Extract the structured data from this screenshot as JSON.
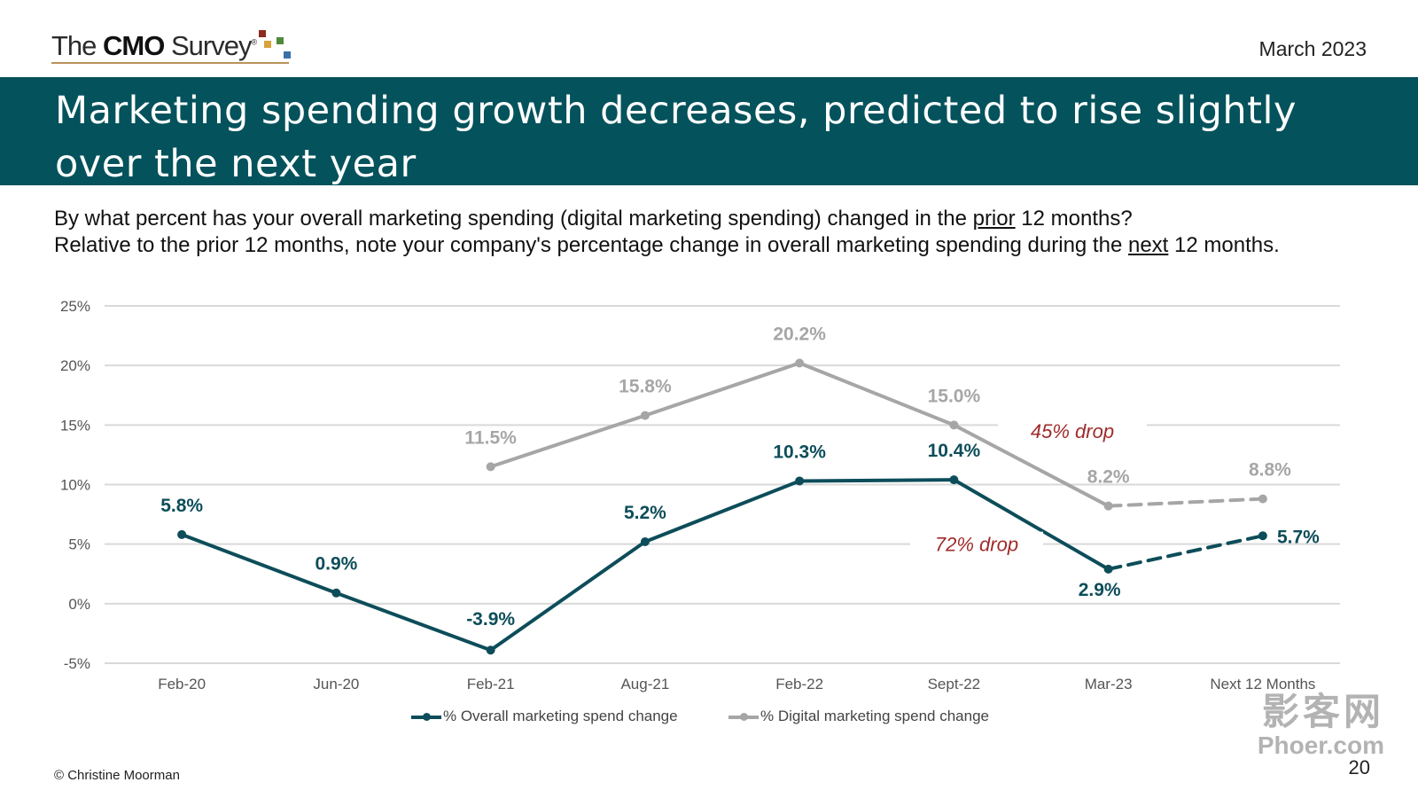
{
  "header": {
    "logo_prefix": "The ",
    "logo_bold": "CMO",
    "logo_suffix": " Survey",
    "logo_reg": "®",
    "date": "March 2023",
    "logo_colors": [
      "#8b2a1e",
      "#d9a23a",
      "#4e8a3a",
      "#3a6fa8"
    ]
  },
  "title": "Marketing spending growth decreases, predicted to rise slightly over the next year",
  "question": {
    "line1_before": "By what percent has your overall marketing spending (digital marketing spending) changed in the ",
    "line1_underlined": "prior",
    "line1_after": " 12 months?",
    "line2_before": "Relative to the prior 12 months, note your company's percentage change in overall marketing spending during the ",
    "line2_underlined": "next",
    "line2_after": " 12 months."
  },
  "chart_data": {
    "type": "line",
    "categories": [
      "Feb-20",
      "Jun-20",
      "Feb-21",
      "Aug-21",
      "Feb-22",
      "Sept-22",
      "Mar-23",
      "Next 12 Months"
    ],
    "ylim": [
      -5,
      25
    ],
    "yticks": [
      -5,
      0,
      5,
      10,
      15,
      20,
      25
    ],
    "ytick_labels": [
      "-5%",
      "0%",
      "5%",
      "10%",
      "15%",
      "20%",
      "25%"
    ],
    "grid": true,
    "legend_position": "bottom",
    "series": [
      {
        "name": "% Overall marketing spend change",
        "color": "#0d4d5a",
        "values": [
          5.8,
          0.9,
          -3.9,
          5.2,
          10.3,
          10.4,
          2.9,
          5.7
        ],
        "labels": [
          "5.8%",
          "0.9%",
          "-3.9%",
          "5.2%",
          "10.3%",
          "10.4%",
          "2.9%",
          "5.7%"
        ],
        "dashed_last_segment": true
      },
      {
        "name": "% Digital marketing spend change",
        "color": "#a6a6a6",
        "values": [
          null,
          null,
          11.5,
          15.8,
          20.2,
          15.0,
          8.2,
          8.8
        ],
        "labels": [
          null,
          null,
          "11.5%",
          "15.8%",
          "20.2%",
          "15.0%",
          "8.2%",
          "8.8%"
        ],
        "dashed_last_segment": true
      }
    ],
    "annotations": [
      {
        "text": "45% drop",
        "near": "Sept-22 to Mar-23, digital series",
        "value": 14.5
      },
      {
        "text": "72% drop",
        "near": "Sept-22 to Mar-23, overall series",
        "value": 5.0
      }
    ]
  },
  "footer": {
    "copyright": "© Christine Moorman",
    "page_number": "20"
  },
  "watermark": {
    "line1": "影客网",
    "line2": "Phoer.com"
  }
}
